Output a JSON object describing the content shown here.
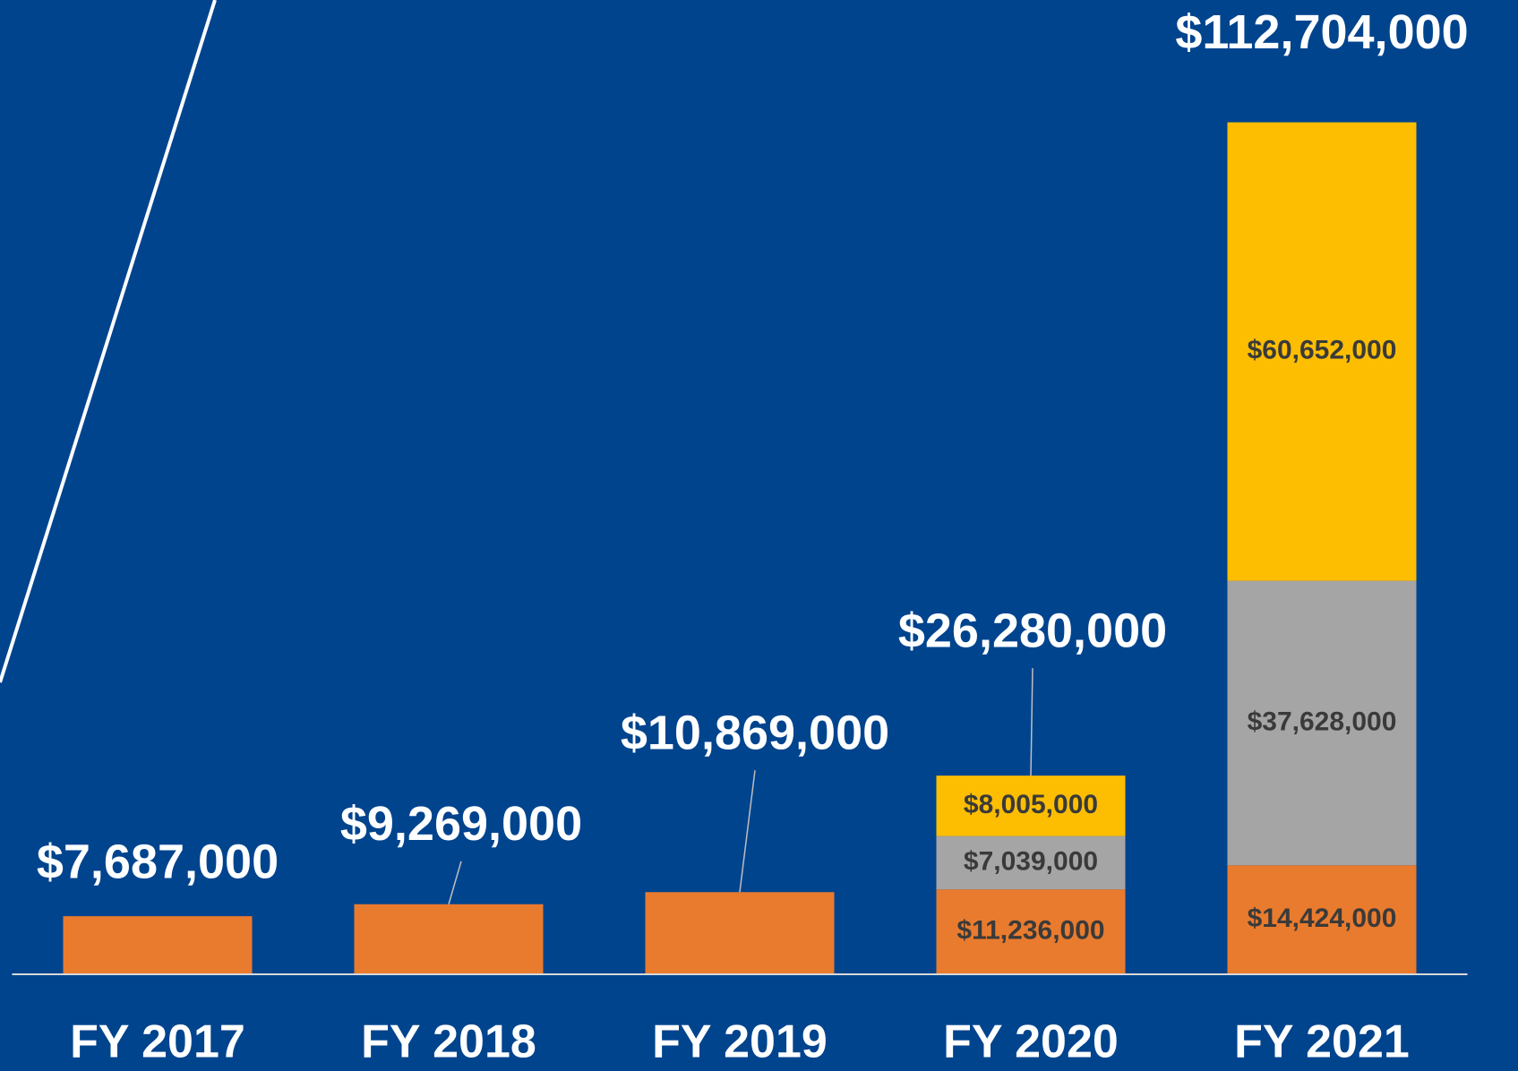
{
  "chart_data": {
    "type": "stacked_bar",
    "categories": [
      "FY 2017",
      "FY 2018",
      "FY 2019",
      "FY 2020",
      "FY 2021"
    ],
    "series": [
      {
        "color": "#e97b2e",
        "values": [
          7687000,
          9269000,
          10869000,
          11236000,
          14424000
        ],
        "value_labels": [
          null,
          null,
          null,
          "$11,236,000",
          "$14,424,000"
        ]
      },
      {
        "color": "#a5a5a5",
        "values": [
          null,
          null,
          null,
          7039000,
          37628000
        ],
        "value_labels": [
          null,
          null,
          null,
          "$7,039,000",
          "$37,628,000"
        ]
      },
      {
        "color": "#fdbe02",
        "values": [
          null,
          null,
          null,
          8005000,
          60652000
        ],
        "value_labels": [
          null,
          null,
          null,
          "$8,005,000",
          "$60,652,000"
        ]
      }
    ],
    "totals": {
      "values": [
        7687000,
        9269000,
        10869000,
        26280000,
        112704000
      ],
      "value_labels": [
        "$7,687,000",
        "$9,269,000",
        "$10,869,000",
        "$26,280,000",
        "$112,704,000"
      ]
    },
    "ylim": [
      0,
      120000000
    ]
  }
}
